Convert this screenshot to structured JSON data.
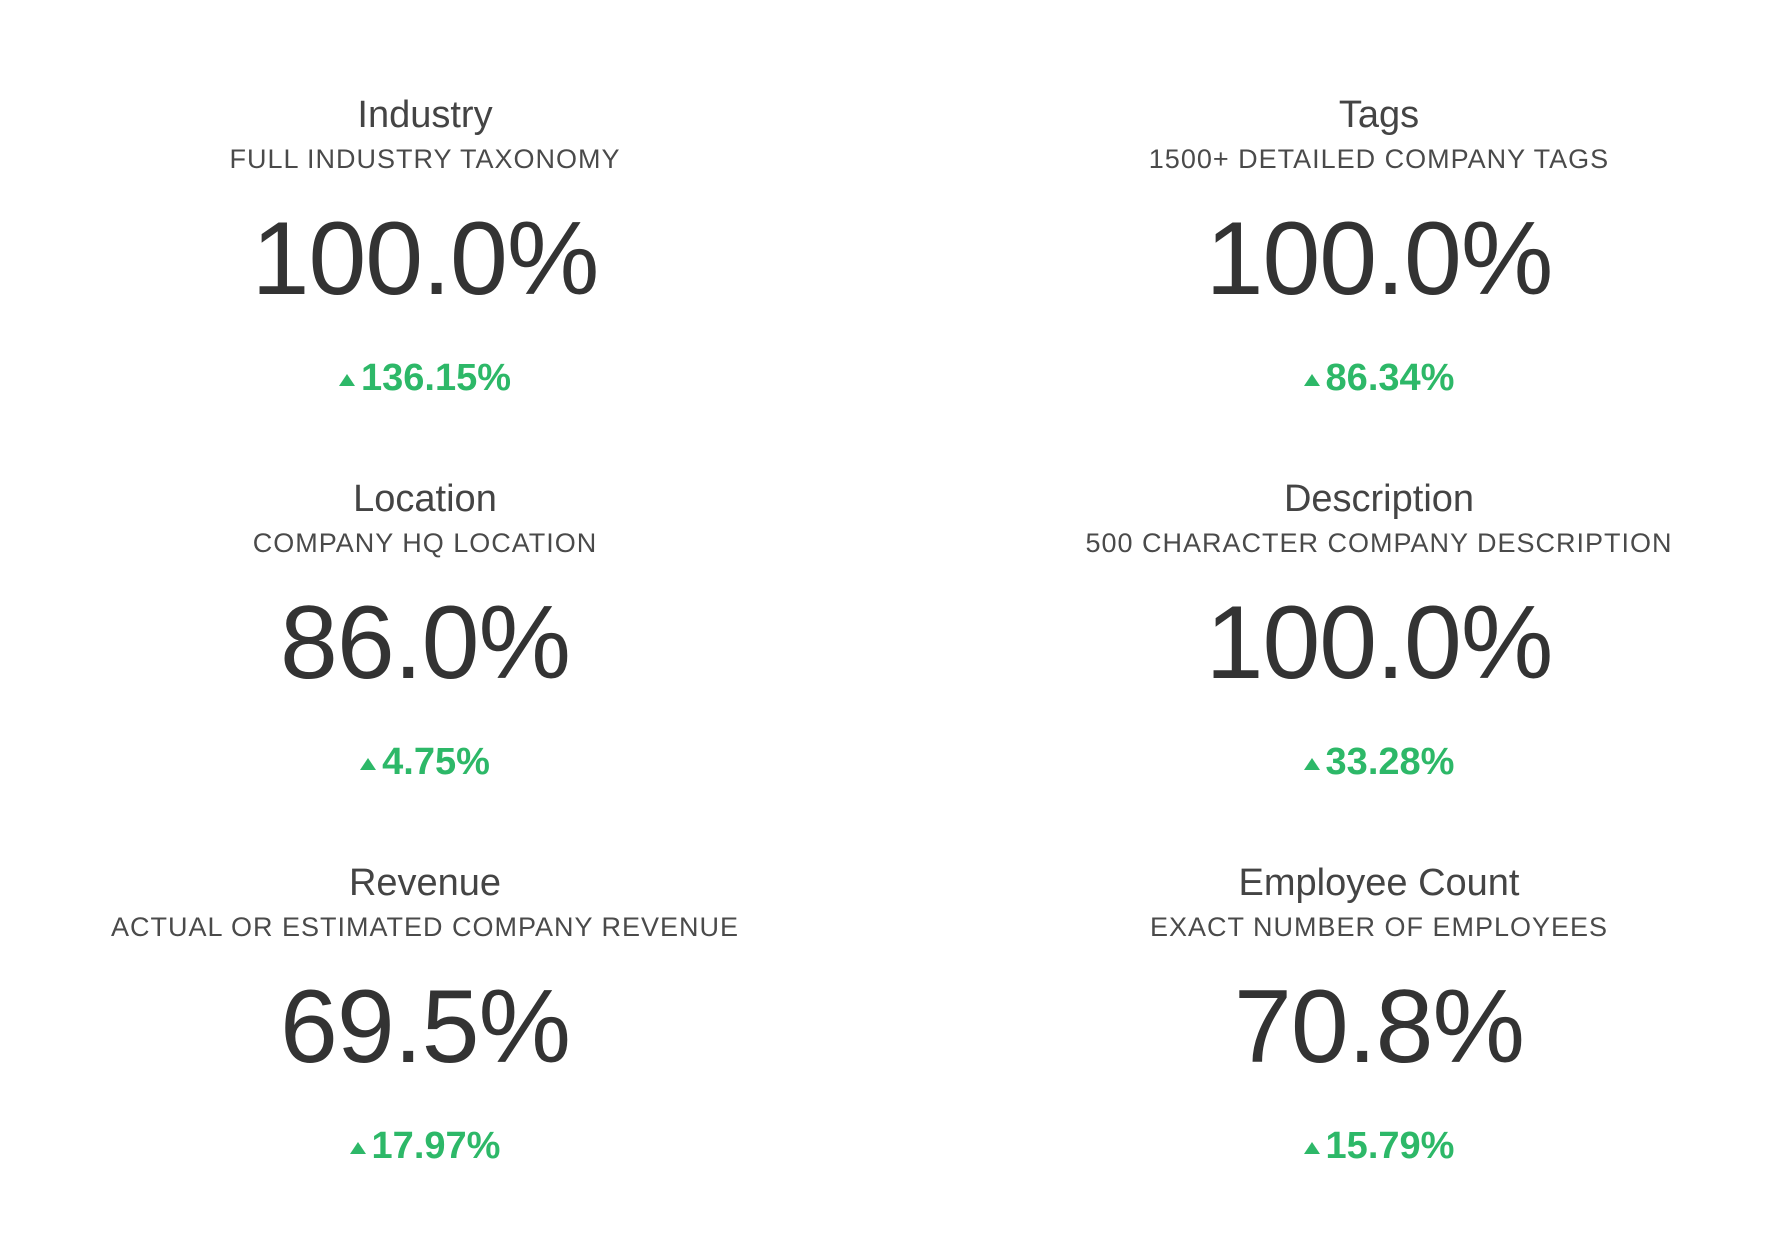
{
  "accent_color": "#2db868",
  "metrics": [
    {
      "title": "Industry",
      "subtitle": "FULL INDUSTRY TAXONOMY",
      "value": "100.0%",
      "change": "136.15%",
      "trend_icon": "arrow-up-icon"
    },
    {
      "title": "Tags",
      "subtitle": "1500+ DETAILED COMPANY TAGS",
      "value": "100.0%",
      "change": "86.34%",
      "trend_icon": "arrow-up-icon"
    },
    {
      "title": "Location",
      "subtitle": "COMPANY HQ LOCATION",
      "value": "86.0%",
      "change": "4.75%",
      "trend_icon": "arrow-up-icon"
    },
    {
      "title": "Description",
      "subtitle": "500 CHARACTER COMPANY DESCRIPTION",
      "value": "100.0%",
      "change": "33.28%",
      "trend_icon": "arrow-up-icon"
    },
    {
      "title": "Revenue",
      "subtitle": "ACTUAL OR ESTIMATED COMPANY REVENUE",
      "value": "69.5%",
      "change": "17.97%",
      "trend_icon": "arrow-up-icon"
    },
    {
      "title": "Employee Count",
      "subtitle": "EXACT NUMBER OF EMPLOYEES",
      "value": "70.8%",
      "change": "15.79%",
      "trend_icon": "arrow-up-icon"
    }
  ]
}
